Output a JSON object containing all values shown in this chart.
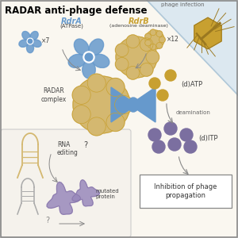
{
  "title": "RADAR anti-phage defense",
  "title_fontsize": 8.5,
  "title_fontweight": "bold",
  "bg_color": "#faf7f0",
  "bg_color2": "#dce8f0",
  "border_color": "#888888",
  "rdrA_label": "RdrA",
  "rdrA_sub": "(ATPase)",
  "rdrB_label": "RdrB",
  "rdrB_sub": "(adenosine deaminase)",
  "rdrA_color": "#6699cc",
  "rdrB_color": "#c8a030",
  "x7_label": "×7",
  "x12_label": "×12",
  "radar_complex_label": "RADAR\ncomplex",
  "datp_label": "(d)ATP",
  "ditp_label": "(d)ITP",
  "deamination_label": "deamination",
  "phage_infection_label": "phage infection",
  "rna_editing_label": "RNA\nediting",
  "mutated_protein_label": "mutated\nprotein",
  "inhibition_label": "Inhibition of phage\npropagation",
  "atp_dot_color": "#c8a030",
  "itp_dot_color": "#7b6fa0",
  "arrow_color": "#888888",
  "phage_color": "#c8a030",
  "flower_color": "#6699cc",
  "ball_color": "#d4b870",
  "ball_outline": "#c8a030",
  "inset_bg": "#f5f2ec",
  "inset_border": "#cccccc",
  "text_color": "#444444"
}
